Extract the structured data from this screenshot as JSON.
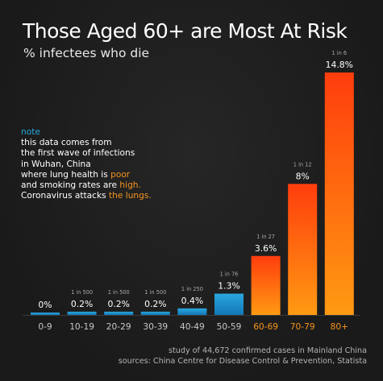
{
  "title": "Those Aged 60+ are Most At Risk",
  "subtitle": "% infectees who die",
  "note": {
    "label": "note",
    "line1": "this data comes from",
    "line2": "the first wave of infections",
    "line3": "in Wuhan, China",
    "line4_pre": "where lung health is ",
    "line4_hl": "poor",
    "line5_pre": "and smoking rates are ",
    "line5_hl": "high.",
    "line6_pre": "Coronavirus attacks ",
    "line6_hl": "the lungs."
  },
  "footer": {
    "study": "study of 44,672 confirmed cases in Mainland China",
    "sources": "sources: China Centre for Disease Control & Prevention, Statista"
  },
  "colors": {
    "blue_top": "#2aa7df",
    "blue_bottom": "#1277b5",
    "red_top": "#ff3d0d",
    "orange_bottom": "#ff9a12",
    "highlight_label": "#f7941d",
    "axis_label": "#c8c8c8"
  },
  "chart_data": {
    "type": "bar",
    "categories": [
      "0-9",
      "10-19",
      "20-29",
      "30-39",
      "40-49",
      "50-59",
      "60-69",
      "70-79",
      "80+"
    ],
    "values": [
      0,
      0.2,
      0.2,
      0.2,
      0.4,
      1.3,
      3.6,
      8,
      14.8
    ],
    "value_labels": [
      "0%",
      "0.2%",
      "0.2%",
      "0.2%",
      "0.4%",
      "1.3%",
      "3.6%",
      "8%",
      "14.8%"
    ],
    "ratio_labels": [
      "",
      "1 in 500",
      "1 in 500",
      "1 in 500",
      "1 in 250",
      "1 in 76",
      "1 in 27",
      "1 in 12",
      "1 in 6"
    ],
    "highlight_from_index": 6,
    "ylim": [
      0,
      14.8
    ]
  }
}
